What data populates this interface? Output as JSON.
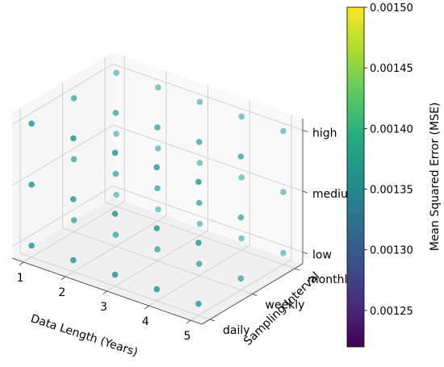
{
  "chart_data": {
    "type": "scatter",
    "subtype": "3d",
    "title": "",
    "x_axis": {
      "label": "Data Length (Years)",
      "ticks": [
        "1",
        "2",
        "3",
        "4",
        "5"
      ],
      "range": [
        1,
        5
      ]
    },
    "y_axis": {
      "label": "Sampling Interval",
      "ticks": [
        "daily",
        "weekly",
        "monthly"
      ]
    },
    "z_axis": {
      "label": "",
      "ticks": [
        "low",
        "medium",
        "high"
      ]
    },
    "colorbar": {
      "label": "Mean Squared Error (MSE)",
      "colormap": "viridis",
      "range": [
        0.00122,
        0.0015
      ],
      "ticks": [
        "0.00125",
        "0.00130",
        "0.00135",
        "0.00140",
        "0.00145",
        "0.00150"
      ]
    },
    "grid": true,
    "point_color": "#2f9c97",
    "points": [
      {
        "x": 1,
        "y": "daily",
        "z": "low"
      },
      {
        "x": 2,
        "y": "daily",
        "z": "low"
      },
      {
        "x": 3,
        "y": "daily",
        "z": "low"
      },
      {
        "x": 4,
        "y": "daily",
        "z": "low"
      },
      {
        "x": 5,
        "y": "daily",
        "z": "low"
      },
      {
        "x": 1,
        "y": "weekly",
        "z": "low"
      },
      {
        "x": 2,
        "y": "weekly",
        "z": "low"
      },
      {
        "x": 3,
        "y": "weekly",
        "z": "low"
      },
      {
        "x": 4,
        "y": "weekly",
        "z": "low"
      },
      {
        "x": 5,
        "y": "weekly",
        "z": "low"
      },
      {
        "x": 1,
        "y": "monthly",
        "z": "low"
      },
      {
        "x": 2,
        "y": "monthly",
        "z": "low"
      },
      {
        "x": 3,
        "y": "monthly",
        "z": "low"
      },
      {
        "x": 4,
        "y": "monthly",
        "z": "low"
      },
      {
        "x": 5,
        "y": "monthly",
        "z": "low"
      },
      {
        "x": 1,
        "y": "daily",
        "z": "medium"
      },
      {
        "x": 2,
        "y": "daily",
        "z": "medium"
      },
      {
        "x": 3,
        "y": "daily",
        "z": "medium"
      },
      {
        "x": 4,
        "y": "daily",
        "z": "medium"
      },
      {
        "x": 5,
        "y": "daily",
        "z": "medium"
      },
      {
        "x": 1,
        "y": "weekly",
        "z": "medium"
      },
      {
        "x": 2,
        "y": "weekly",
        "z": "medium"
      },
      {
        "x": 3,
        "y": "weekly",
        "z": "medium"
      },
      {
        "x": 4,
        "y": "weekly",
        "z": "medium"
      },
      {
        "x": 5,
        "y": "weekly",
        "z": "medium"
      },
      {
        "x": 1,
        "y": "monthly",
        "z": "medium"
      },
      {
        "x": 2,
        "y": "monthly",
        "z": "medium"
      },
      {
        "x": 3,
        "y": "monthly",
        "z": "medium"
      },
      {
        "x": 4,
        "y": "monthly",
        "z": "medium"
      },
      {
        "x": 5,
        "y": "monthly",
        "z": "medium"
      },
      {
        "x": 1,
        "y": "daily",
        "z": "high"
      },
      {
        "x": 2,
        "y": "daily",
        "z": "high"
      },
      {
        "x": 3,
        "y": "daily",
        "z": "high"
      },
      {
        "x": 4,
        "y": "daily",
        "z": "high"
      },
      {
        "x": 5,
        "y": "daily",
        "z": "high"
      },
      {
        "x": 1,
        "y": "weekly",
        "z": "high"
      },
      {
        "x": 2,
        "y": "weekly",
        "z": "high"
      },
      {
        "x": 3,
        "y": "weekly",
        "z": "high"
      },
      {
        "x": 4,
        "y": "weekly",
        "z": "high"
      },
      {
        "x": 5,
        "y": "weekly",
        "z": "high"
      },
      {
        "x": 1,
        "y": "monthly",
        "z": "high"
      },
      {
        "x": 2,
        "y": "monthly",
        "z": "high"
      },
      {
        "x": 3,
        "y": "monthly",
        "z": "high"
      },
      {
        "x": 4,
        "y": "monthly",
        "z": "high"
      },
      {
        "x": 5,
        "y": "monthly",
        "z": "high"
      }
    ]
  }
}
